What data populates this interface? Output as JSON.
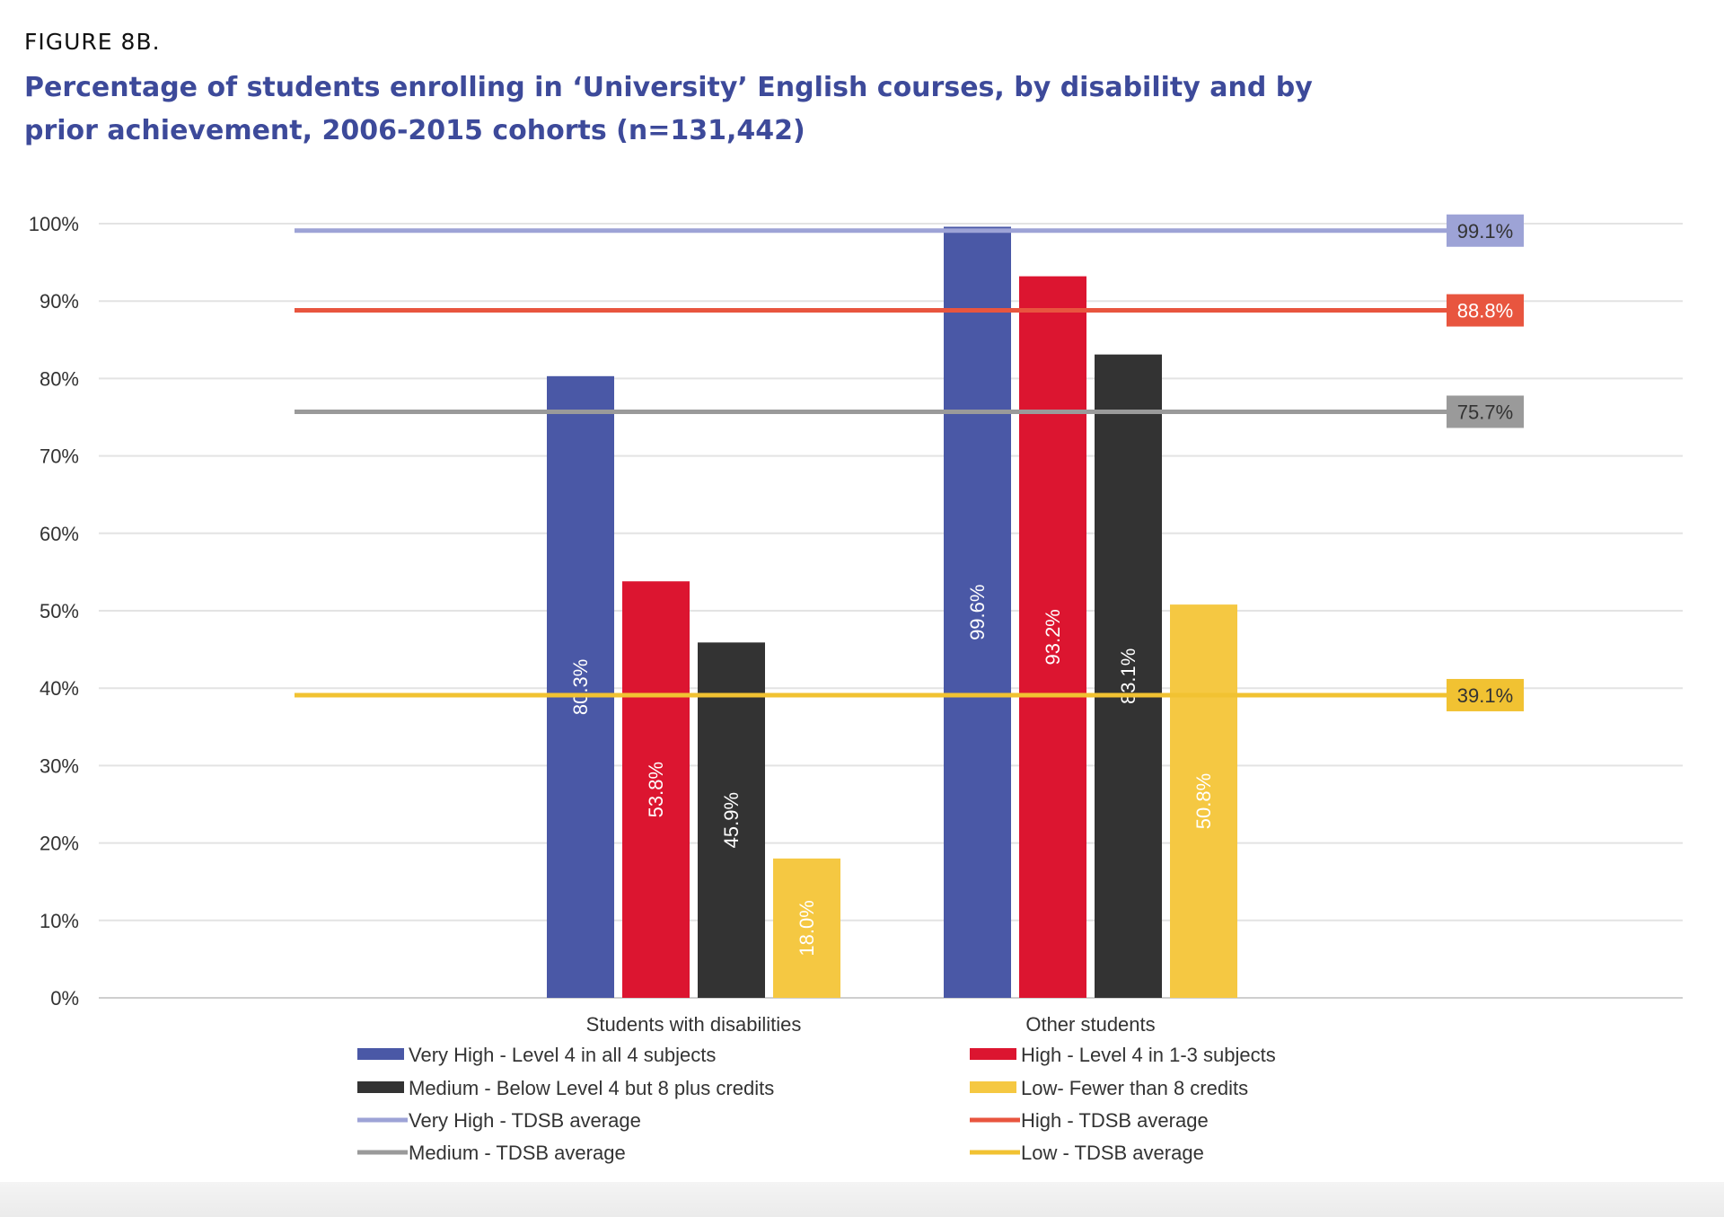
{
  "figure_label": "FIGURE 8B.",
  "chart_data": {
    "type": "bar",
    "title": "Percentage of students enrolling in ‘University’ English courses, by disability and by prior achievement, 2006-2015 cohorts (n=131,442)",
    "categories": [
      "Students with disabilities",
      "Other students"
    ],
    "ylim": [
      0,
      100
    ],
    "yticks": [
      "0%",
      "10%",
      "20%",
      "30%",
      "40%",
      "50%",
      "60%",
      "70%",
      "80%",
      "90%",
      "100%"
    ],
    "grid": true,
    "legend_position": "bottom",
    "series": [
      {
        "name": "Very High - Level 4 in all 4 subjects",
        "color": "#4a58a6",
        "values": [
          80.3,
          99.6
        ],
        "labels": [
          "80.3%",
          "99.6%"
        ]
      },
      {
        "name": "High - Level 4 in 1-3 subjects",
        "color": "#dc1530",
        "values": [
          53.8,
          93.2
        ],
        "labels": [
          "53.8%",
          "93.2%"
        ]
      },
      {
        "name": "Medium - Below Level 4 but 8 plus credits",
        "color": "#333333",
        "values": [
          45.9,
          83.1
        ],
        "labels": [
          "45.9%",
          "83.1%"
        ]
      },
      {
        "name": "Low- Fewer than 8 credits",
        "color": "#f5c842",
        "values": [
          18.0,
          50.8
        ],
        "labels": [
          "18.0%",
          "50.8%"
        ]
      }
    ],
    "reference_lines": [
      {
        "name": "Very High - TDSB average",
        "value": 99.1,
        "label": "99.1%",
        "color": "#9da3d6",
        "label_text_color": "#333333"
      },
      {
        "name": "High - TDSB average",
        "value": 88.8,
        "label": "88.8%",
        "color": "#e8553f",
        "label_text_color": "#ffffff"
      },
      {
        "name": "Medium - TDSB average",
        "value": 75.7,
        "label": "75.7%",
        "color": "#9a9a9a",
        "label_text_color": "#333333"
      },
      {
        "name": "Low - TDSB average",
        "value": 39.1,
        "label": "39.1%",
        "color": "#f1c232",
        "label_text_color": "#333333"
      }
    ]
  }
}
